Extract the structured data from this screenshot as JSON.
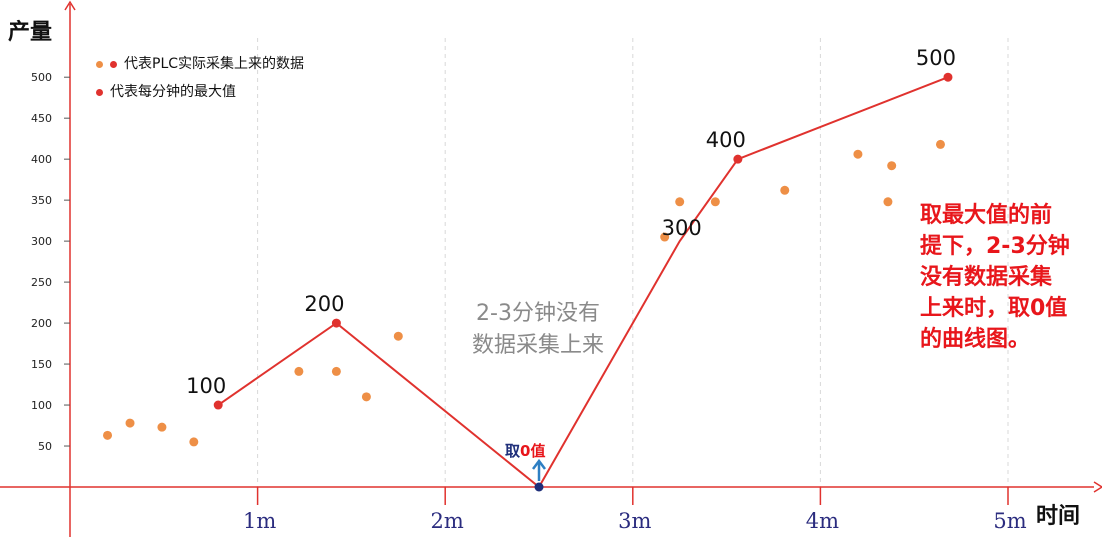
{
  "axes": {
    "y_title": "产量",
    "x_title": "时间"
  },
  "legend": {
    "item1": "代表PLC实际采集上来的数据",
    "item2": "代表每分钟的最大值"
  },
  "annotations": {
    "middle_note": [
      "2-3分钟没有",
      "数据采集上来"
    ],
    "right_note": [
      "取最大值的前",
      "提下，2-3分钟",
      "没有数据采集",
      "上来时，取0值",
      "的曲线图。"
    ],
    "zero_note_part1": "取",
    "zero_note_part2": "0值"
  },
  "colors": {
    "line": "#e0322e",
    "max_point": "#e0322e",
    "raw_point": "#ee8f46",
    "zero_point": "#1f2f7a",
    "arrow": "#2e7fc3",
    "axis": "#e0322e",
    "x_tick_label": "#2b2c7f",
    "grid": "#d8d8d8"
  },
  "chart_data": {
    "type": "scatter",
    "xlabel": "时间",
    "ylabel": "产量",
    "xlim": [
      0,
      5.35
    ],
    "ylim": [
      0,
      500
    ],
    "x_ticks": [
      {
        "value": 1,
        "label": "1m"
      },
      {
        "value": 2,
        "label": "2m"
      },
      {
        "value": 3,
        "label": "3m"
      },
      {
        "value": 4,
        "label": "4m"
      },
      {
        "value": 5,
        "label": "5m"
      }
    ],
    "y_ticks": [
      50,
      100,
      150,
      200,
      250,
      300,
      350,
      400,
      450,
      500
    ],
    "grid_vertical": true,
    "series": [
      {
        "name": "代表PLC实际采集上来的数据",
        "kind": "scatter",
        "points": [
          {
            "x": 0.2,
            "y": 63
          },
          {
            "x": 0.32,
            "y": 78
          },
          {
            "x": 0.49,
            "y": 73
          },
          {
            "x": 0.66,
            "y": 55
          },
          {
            "x": 1.22,
            "y": 141
          },
          {
            "x": 1.42,
            "y": 141
          },
          {
            "x": 1.58,
            "y": 110
          },
          {
            "x": 1.75,
            "y": 184
          },
          {
            "x": 3.17,
            "y": 305
          },
          {
            "x": 3.25,
            "y": 348
          },
          {
            "x": 3.44,
            "y": 348
          },
          {
            "x": 3.81,
            "y": 362
          },
          {
            "x": 4.2,
            "y": 406
          },
          {
            "x": 4.36,
            "y": 348
          },
          {
            "x": 4.38,
            "y": 392
          },
          {
            "x": 4.64,
            "y": 418
          }
        ]
      },
      {
        "name": "代表每分钟的最大值",
        "kind": "line",
        "points": [
          {
            "x": 0.79,
            "y": 100,
            "label": "100"
          },
          {
            "x": 1.42,
            "y": 200,
            "label": "200"
          },
          {
            "x": 2.5,
            "y": 0,
            "label": ""
          },
          {
            "x": 3.25,
            "y": 300,
            "label": "300",
            "no_marker": true
          },
          {
            "x": 3.56,
            "y": 400,
            "label": "400"
          },
          {
            "x": 4.68,
            "y": 500,
            "label": "500"
          }
        ]
      }
    ]
  }
}
